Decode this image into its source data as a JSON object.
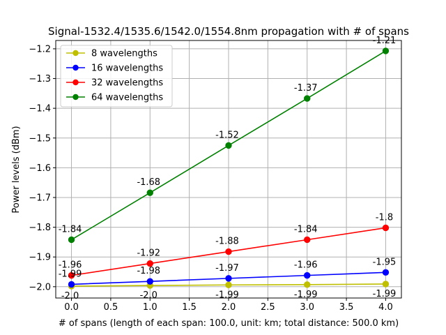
{
  "chart_data": {
    "type": "line",
    "title": "Signal-1532.4/1535.6/1542.0/1554.8nm propagation with # of spans",
    "xlabel": "# of spans (length of each span: 100.0, unit: km; total distance: 500.0 km)",
    "ylabel": "Power levels (dBm)",
    "x": [
      0,
      1,
      2,
      3,
      4
    ],
    "xlim": [
      -0.2,
      4.2
    ],
    "ylim": [
      -2.038,
      -1.172
    ],
    "xticks": [
      "0.0",
      "0.5",
      "1.0",
      "1.5",
      "2.0",
      "2.5",
      "3.0",
      "3.5",
      "4.0"
    ],
    "yticks": [
      "-2.0",
      "-1.9",
      "-1.8",
      "-1.7",
      "-1.6",
      "-1.5",
      "-1.4",
      "-1.3",
      "-1.2"
    ],
    "grid": true,
    "legend_position": "top-left",
    "series": [
      {
        "name": "8 wavelengths",
        "color": "#bfbf00",
        "values": [
          -1.998,
          -1.996,
          -1.994,
          -1.993,
          -1.991
        ],
        "labels": [
          "-2.0",
          "-2.0",
          "-1.99",
          "-1.99",
          "-1.99"
        ],
        "label_side": "below"
      },
      {
        "name": "16 wavelengths",
        "color": "#0000ff",
        "values": [
          -1.992,
          -1.982,
          -1.972,
          -1.962,
          -1.952
        ],
        "labels": [
          "-1.99",
          "-1.98",
          "-1.97",
          "-1.96",
          "-1.95"
        ],
        "label_side": "above"
      },
      {
        "name": "32 wavelengths",
        "color": "#ff0000",
        "values": [
          -1.962,
          -1.922,
          -1.882,
          -1.842,
          -1.802
        ],
        "labels": [
          "-1.96",
          "-1.92",
          "-1.88",
          "-1.84",
          "-1.8"
        ],
        "label_side": "above"
      },
      {
        "name": "64 wavelengths",
        "color": "#008000",
        "values": [
          -1.842,
          -1.684,
          -1.525,
          -1.367,
          -1.207
        ],
        "labels": [
          "-1.84",
          "-1.68",
          "-1.52",
          "-1.37",
          "-1.21"
        ],
        "label_side": "above"
      }
    ]
  }
}
